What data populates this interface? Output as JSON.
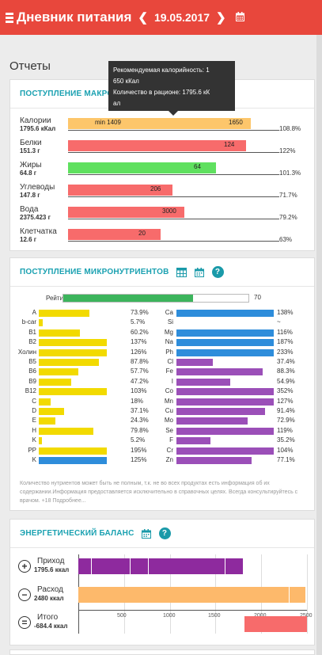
{
  "header": {
    "title": "Дневник питания",
    "prev_arrow": "❮",
    "date": "19.05.2017",
    "next_arrow": "❯",
    "bg_color": "#e8473c"
  },
  "page": {
    "section_title": "Отчеты"
  },
  "macro": {
    "title": "ПОСТУПЛЕНИЕ МАКРОНУТРИЕНТОВ",
    "tooltip": {
      "line1": "Рекомендуемая калорийность: 1",
      "line2": "650 кКал",
      "line3": "Количество в рационе: 1795.6 кК",
      "line4": "ал"
    },
    "rows": [
      {
        "label": "Калории",
        "value": "1795.6 кКал",
        "fill": 1.0,
        "color": "#fdc66b",
        "min_label": "min 1409",
        "bar_label": "1650",
        "percent": "108.8%"
      },
      {
        "label": "Белки",
        "value": "151.3 г",
        "fill": 0.976,
        "color": "#f76b6b",
        "bar_label": "124",
        "percent": "122%"
      },
      {
        "label": "Жиры",
        "value": "64.8 г",
        "fill": 0.812,
        "color": "#5fe05f",
        "bar_label": "64",
        "percent": "101.3%"
      },
      {
        "label": "Углеводы",
        "value": "147.8 г",
        "fill": 0.574,
        "color": "#f76b6b",
        "bar_label": "206",
        "percent": "71.7%"
      },
      {
        "label": "Вода",
        "value": "2375.423 г",
        "fill": 0.637,
        "color": "#f76b6b",
        "bar_label": "3000",
        "percent": "79.2%"
      },
      {
        "label": "Клетчатка",
        "value": "12.6 г",
        "fill": 0.506,
        "color": "#f76b6b",
        "bar_label": "20",
        "percent": "63%"
      }
    ]
  },
  "micro": {
    "title": "ПОСТУПЛЕНИЕ МИКРОНУТРИЕНТОВ",
    "rating_label": "Рейтинг",
    "rating_value": "70",
    "rating_fill": 0.7,
    "vitamin_color": "#f2da00",
    "mineral_color_blue": "#2e8ddb",
    "mineral_color_purple": "#9b4fb8",
    "vitamins": [
      {
        "name": "A",
        "percent": "73.9%",
        "fill": 0.739
      },
      {
        "name": "b-car",
        "percent": "5.7%",
        "fill": 0.057
      },
      {
        "name": "B1",
        "percent": "60.2%",
        "fill": 0.602
      },
      {
        "name": "B2",
        "percent": "137%",
        "fill": 1.0
      },
      {
        "name": "Холин",
        "percent": "126%",
        "fill": 1.0
      },
      {
        "name": "B5",
        "percent": "87.8%",
        "fill": 0.878
      },
      {
        "name": "B6",
        "percent": "57.7%",
        "fill": 0.577
      },
      {
        "name": "B9",
        "percent": "47.2%",
        "fill": 0.472
      },
      {
        "name": "B12",
        "percent": "103%",
        "fill": 1.0
      },
      {
        "name": "C",
        "percent": "18%",
        "fill": 0.18
      },
      {
        "name": "D",
        "percent": "37.1%",
        "fill": 0.371
      },
      {
        "name": "E",
        "percent": "24.3%",
        "fill": 0.243
      },
      {
        "name": "H",
        "percent": "79.8%",
        "fill": 0.798
      },
      {
        "name": "K",
        "percent": "5.2%",
        "fill": 0.052
      },
      {
        "name": "PP",
        "percent": "195%",
        "fill": 1.0
      },
      {
        "name": "K",
        "percent": "125%",
        "fill": 1.0,
        "blue": true
      }
    ],
    "minerals": [
      {
        "name": "Ca",
        "percent": "138%",
        "fill": 1.0,
        "blue": true
      },
      {
        "name": "Si",
        "percent": "~",
        "fill": 0
      },
      {
        "name": "Mg",
        "percent": "116%",
        "fill": 1.0,
        "blue": true
      },
      {
        "name": "Na",
        "percent": "187%",
        "fill": 1.0,
        "blue": true
      },
      {
        "name": "Ph",
        "percent": "233%",
        "fill": 1.0,
        "blue": true
      },
      {
        "name": "Cl",
        "percent": "37.4%",
        "fill": 0.374,
        "blue": false
      },
      {
        "name": "Fe",
        "percent": "88.3%",
        "fill": 0.883
      },
      {
        "name": "I",
        "percent": "54.9%",
        "fill": 0.549
      },
      {
        "name": "Co",
        "percent": "352%",
        "fill": 1.0
      },
      {
        "name": "Mn",
        "percent": "127%",
        "fill": 1.0
      },
      {
        "name": "Cu",
        "percent": "91.4%",
        "fill": 0.914
      },
      {
        "name": "Mo",
        "percent": "72.9%",
        "fill": 0.729
      },
      {
        "name": "Se",
        "percent": "119%",
        "fill": 1.0
      },
      {
        "name": "F",
        "percent": "35.2%",
        "fill": 0.352
      },
      {
        "name": "Cr",
        "percent": "104%",
        "fill": 1.0
      },
      {
        "name": "Zn",
        "percent": "77.1%",
        "fill": 0.771
      }
    ],
    "note": "Количество нутриентов может быть не полным, т.к. не во всех продуктах есть информация об их содержании.Информация предоставляется исключительно в справочных целях. Всегда консультируйтесь с врачом. +18 Подробнее..."
  },
  "energy": {
    "title": "ЭНЕРГЕТИЧЕСКИЙ БАЛАНС",
    "rows": [
      {
        "sign": "+",
        "label": "Приход",
        "value": "1795.6 ккал",
        "kcal": 1795.6,
        "color": "#8e2a9e",
        "segments": [
          0,
          140,
          560,
          760,
          1600,
          1795.6
        ]
      },
      {
        "sign": "−",
        "label": "Расход",
        "value": "2480 ккал",
        "kcal": 2480,
        "color": "#fdb96b",
        "segments": [
          0,
          2300,
          2480
        ]
      },
      {
        "sign": "=",
        "label": "Итого",
        "value": "-684.4 ккал",
        "kcal": -684.4,
        "color": "#f76b6b"
      }
    ],
    "axis_max": 2500,
    "ticks": [
      "500",
      "1000",
      "1500",
      "2000",
      "2500"
    ]
  }
}
